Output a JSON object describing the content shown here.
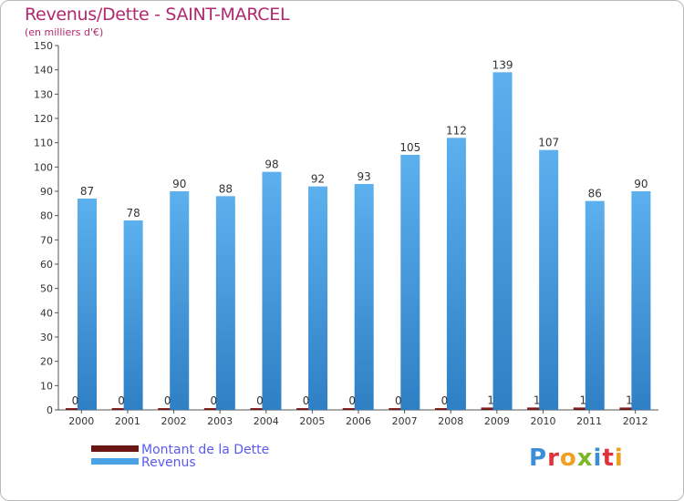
{
  "header": {
    "title": "Revenus/Dette - SAINT-MARCEL",
    "subtitle": "(en milliers d'€)"
  },
  "logo": {
    "text": "Proxiti",
    "letter_colors": [
      "#3b8fd9",
      "#e0323c",
      "#f0a020",
      "#7ab829",
      "#3b8fd9",
      "#e0323c",
      "#f0a020"
    ]
  },
  "chart_data": {
    "type": "bar",
    "title": "Revenus/Dette - SAINT-MARCEL",
    "subtitle": "(en milliers d'€)",
    "categories": [
      "2000",
      "2001",
      "2002",
      "2003",
      "2004",
      "2005",
      "2006",
      "2007",
      "2008",
      "2009",
      "2010",
      "2011",
      "2012"
    ],
    "series": [
      {
        "name": "Montant de la Dette",
        "color": "#7a1c1c",
        "values": [
          0,
          0,
          0,
          0,
          0,
          0,
          0,
          0,
          0,
          1,
          1,
          1,
          1
        ]
      },
      {
        "name": "Revenus",
        "color": "#4aa3e6",
        "values": [
          87,
          78,
          90,
          88,
          98,
          92,
          93,
          105,
          112,
          139,
          107,
          86,
          90
        ]
      }
    ],
    "ylim": [
      0,
      150
    ],
    "yticks": [
      0,
      10,
      20,
      30,
      40,
      50,
      60,
      70,
      80,
      90,
      100,
      110,
      120,
      130,
      140,
      150
    ],
    "grid": false,
    "legend": "bottom-left"
  }
}
